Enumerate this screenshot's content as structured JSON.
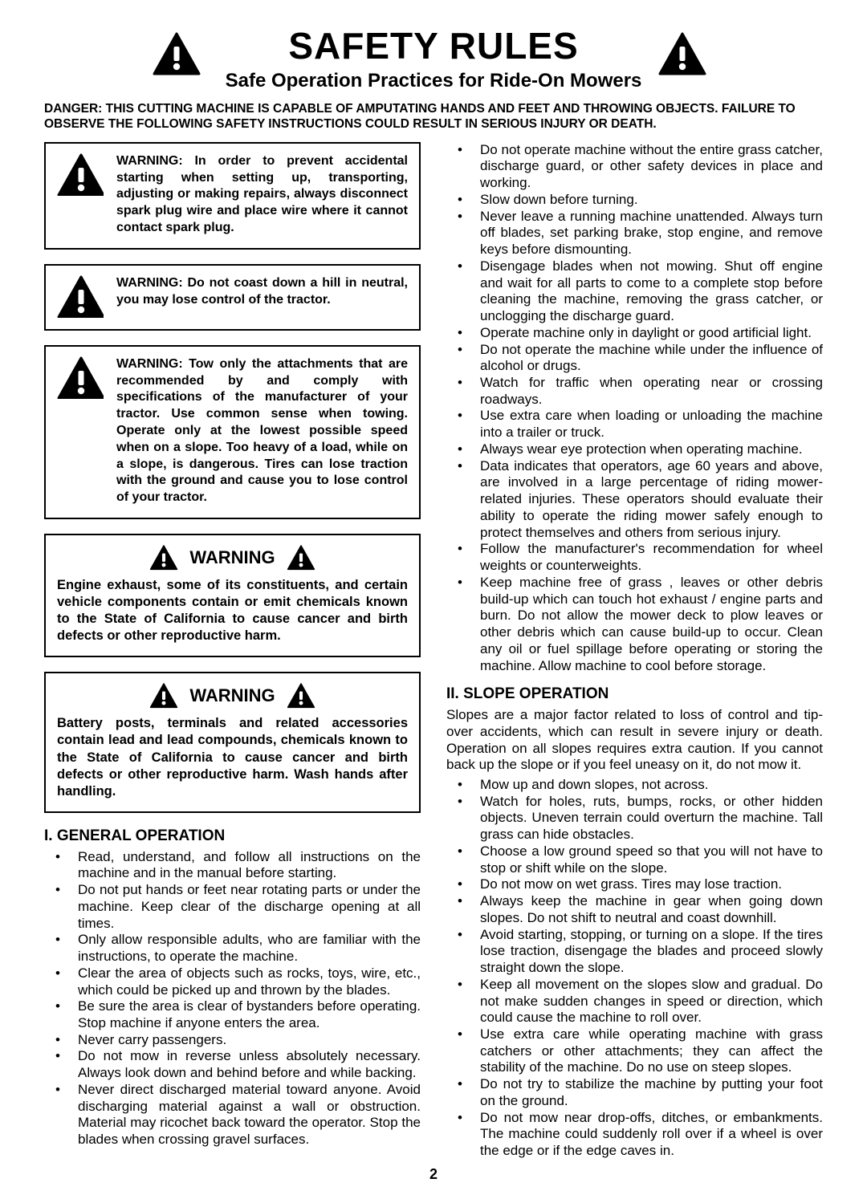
{
  "header": {
    "title": "SAFETY RULES",
    "subtitle": "Safe Operation Practices for Ride-On Mowers"
  },
  "danger": "DANGER:  THIS CUTTING MACHINE IS CAPABLE OF AMPUTATING HANDS AND FEET AND THROWING OBJECTS.  FAILURE TO OBSERVE THE FOLLOWING SAFETY INSTRUCTIONS COULD RESULT IN SERIOUS INJURY OR DEATH.",
  "warning_boxes": {
    "box1": "WARNING:  In order to prevent accidental starting when setting up, transporting, adjusting or making repairs, always disconnect spark plug wire and place wire where it cannot contact spark plug.",
    "box2": "WARNING:  Do not coast down a hill in neutral, you may lose control of the tractor.",
    "box3": "WARNING:  Tow only the attachments that are recommended by and comply with specifications of the manufacturer of your tractor. Use common sense when towing. Operate only at the lowest possible speed when on a slope.  Too heavy of a load, while on a slope, is dangerous.  Tires can lose traction with the ground and cause you to lose control of your tractor.",
    "warning_label": "WARNING",
    "box4": "Engine exhaust, some of its constituents, and certain vehicle components contain or emit chemicals known to the State of California to cause cancer and birth defects or other reproductive harm.",
    "box5": "Battery posts, terminals and related accessories contain lead and lead compounds, chemicals known to the State of California to cause cancer and birth defects or other reproductive harm. Wash hands after handling."
  },
  "sections": {
    "general": {
      "title": "I. GENERAL OPERATION",
      "items_left": [
        "Read, understand, and follow all instructions on the machine and in the manual before starting.",
        "Do not put hands or feet near rotating parts or under the machine. Keep clear of the discharge opening at all times.",
        "Only allow responsible adults, who are familiar with the instructions, to operate the machine.",
        "Clear the area of objects such as  rocks, toys, wire, etc., which could be picked up and thrown by the blades.",
        "Be sure the area is clear of bystanders before operating.  Stop machine if anyone enters the area.",
        "Never carry passengers.",
        "Do not mow in reverse unless absolutely necessary. Always look down and behind before and while backing.",
        "Never direct discharged material toward anyone. Avoid discharging material against a wall or obstruction. Material may ricochet back toward the operator. Stop the blades when crossing gravel surfaces."
      ],
      "items_right": [
        "Do not operate machine without the entire grass catcher, discharge guard, or other safety devices in place and working.",
        "Slow down before turning.",
        "Never leave a running machine unattended.  Always turn off blades, set parking brake, stop engine, and remove keys before dismounting.",
        "Disengage blades when not mowing. Shut off engine and wait for all parts to come to a complete stop before cleaning the machine, removing the grass catcher, or unclogging the discharge guard.",
        "Operate machine only in daylight or good artificial light.",
        "Do not operate the machine while under the influence of alcohol or drugs.",
        "Watch for traffic when operating near or crossing roadways.",
        "Use extra care when loading or unloading the machine into a trailer or truck.",
        "Always wear eye protection when operating machine.",
        "Data indicates that operators, age 60 years and above, are involved in a large percentage of riding mower-related injuries.  These operators should evaluate their ability to operate the riding mower safely enough to protect themselves and others from serious injury.",
        "Follow the manufacturer's recommendation for wheel weights or counterweights.",
        "Keep machine free of grass , leaves or other debris build-up which can touch hot exhaust / engine parts and burn. Do not allow the mower deck to plow leaves or other debris which can cause build-up to occur. Clean any oil or fuel spillage before operating or storing the machine. Allow machine to cool before storage."
      ]
    },
    "slope": {
      "title": "II. SLOPE OPERATION",
      "intro": "Slopes are a major factor related to loss of control and tip-over accidents, which can result in severe injury or death.  Operation on all slopes requires extra caution.  If you cannot back up the slope or if you feel uneasy on it, do not mow it.",
      "items": [
        "Mow up and down slopes, not across.",
        "Watch for holes, ruts, bumps, rocks, or other hidden objects.  Uneven terrain could overturn the machine. Tall grass can hide obstacles.",
        "Choose a low ground speed so that you will not have to stop or shift while on the slope.",
        "Do not mow on wet grass. Tires may lose traction.",
        "Always keep the machine in gear when going down slopes. Do not shift to neutral and coast downhill.",
        "Avoid starting, stopping, or turning on a slope.  If the tires lose traction,  disengage the blades and proceed slowly straight down the slope.",
        "Keep all movement on the slopes slow and gradual. Do not make sudden changes in speed or direction, which could cause the machine to roll over.",
        "Use extra care while operating machine with grass catchers or other attachments; they can affect the stability of the machine. Do no use on steep slopes.",
        "Do not  try to stabilize the machine by putting your foot on the ground.",
        "Do not mow near drop-offs, ditches, or embankments. The machine could suddenly roll over if a wheel is over the edge or if the edge caves in."
      ]
    }
  },
  "page_number": "2",
  "styling": {
    "icon_fill": "#000000",
    "icon_exclaim_fill": "#ffffff",
    "border_color": "#000000",
    "background": "#ffffff",
    "text_color": "#000000"
  }
}
